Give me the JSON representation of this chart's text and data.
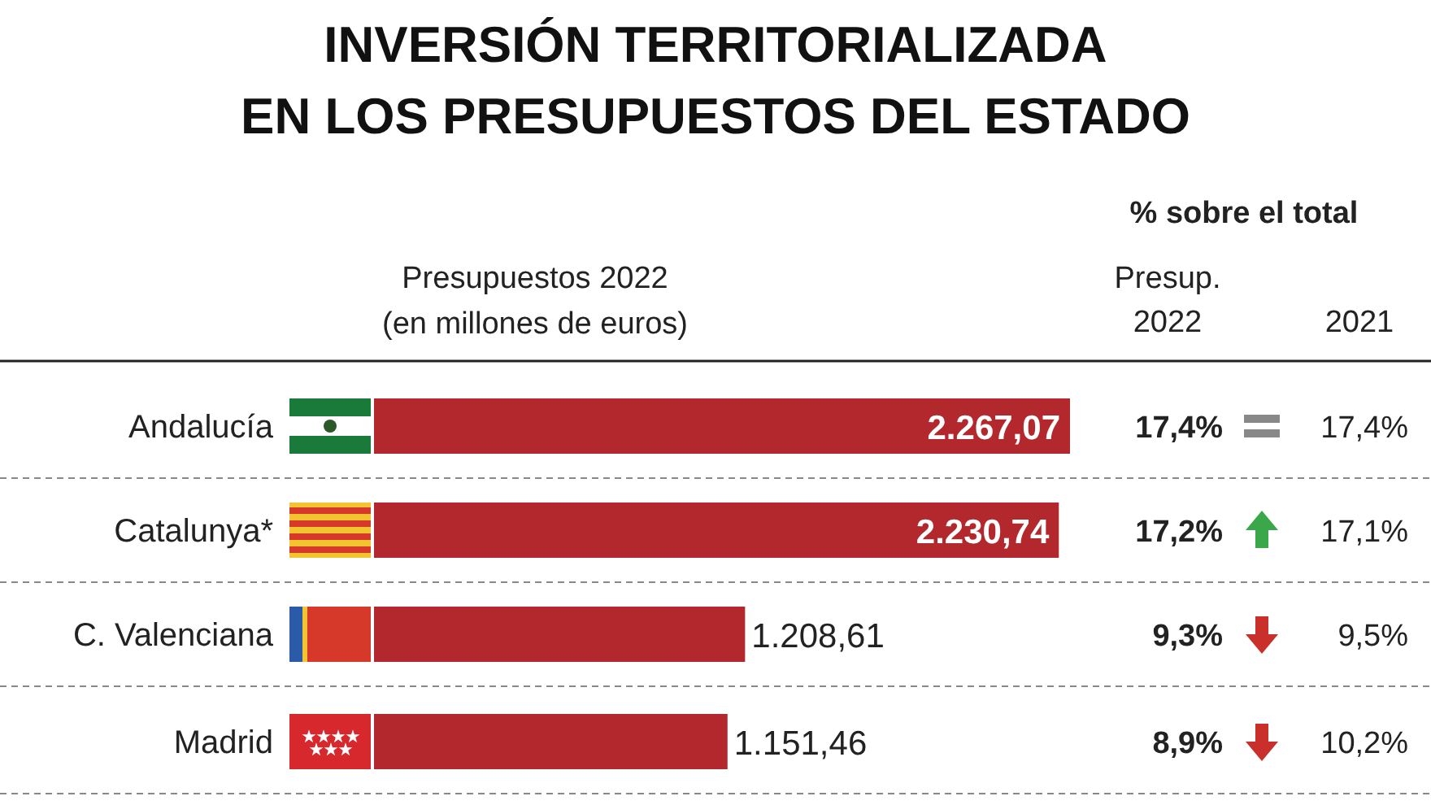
{
  "chart_data": {
    "type": "bar",
    "orientation": "horizontal",
    "title": "INVERSIÓN TERRITORIALIZADA\nEN LOS PRESUPUESTOS DEL ESTADO",
    "xlabel": "Presupuestos 2022\n(en millones de euros)",
    "categories": [
      "Andalucía",
      "Catalunya*",
      "C. Valenciana",
      "Madrid"
    ],
    "values": [
      2267.07,
      2230.74,
      1208.61,
      1151.46
    ],
    "value_labels": [
      "2.267,07",
      "2.230,74",
      "1.208,61",
      "1.151,46"
    ],
    "color": "#b3282d",
    "annotations": [
      "% sobre el total",
      "Presup.\n2022",
      "2021",
      "17,4%",
      "17,4%",
      "17,2%",
      "17,1%",
      "9,3%",
      "9,5%",
      "8,9%",
      "10,2%"
    ]
  }
}
